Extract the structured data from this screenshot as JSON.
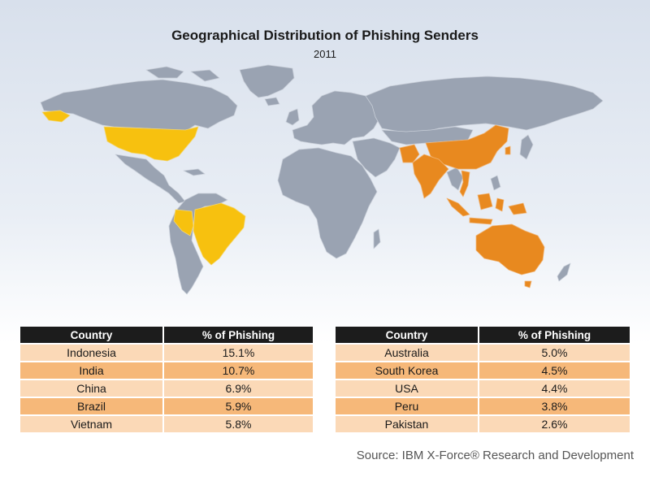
{
  "title": "Geographical Distribution of Phishing Senders",
  "subtitle": "2011",
  "colors": {
    "land": "#9aa3b2",
    "highlight_americas": "#f7c10f",
    "highlight_asia_pacific": "#e8891f",
    "table_header": "#1c1c1c",
    "row_light": "#fbd9b7",
    "row_dark": "#f6b879"
  },
  "map": {
    "highlighted_countries": [
      "USA",
      "Brazil",
      "Peru",
      "China",
      "India",
      "Pakistan",
      "Vietnam",
      "South Korea",
      "Indonesia",
      "Australia"
    ]
  },
  "tables": [
    {
      "headers": [
        "Country",
        "% of Phishing"
      ],
      "rows": [
        [
          "Indonesia",
          "15.1%"
        ],
        [
          "India",
          "10.7%"
        ],
        [
          "China",
          "6.9%"
        ],
        [
          "Brazil",
          "5.9%"
        ],
        [
          "Vietnam",
          "5.8%"
        ]
      ]
    },
    {
      "headers": [
        "Country",
        "% of Phishing"
      ],
      "rows": [
        [
          "Australia",
          "5.0%"
        ],
        [
          "South Korea",
          "4.5%"
        ],
        [
          "USA",
          "4.4%"
        ],
        [
          "Peru",
          "3.8%"
        ],
        [
          "Pakistan",
          "2.6%"
        ]
      ]
    }
  ],
  "source": "Source: IBM X-Force® Research and Development"
}
